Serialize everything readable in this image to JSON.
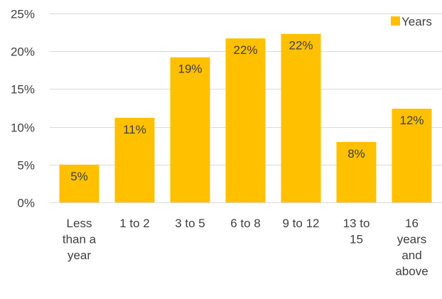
{
  "chart_data": {
    "type": "bar",
    "categories": [
      [
        "Less",
        "than a",
        "year"
      ],
      [
        "1 to 2"
      ],
      [
        "3 to 5"
      ],
      [
        "6 to 8"
      ],
      [
        "9 to 12"
      ],
      [
        "13 to",
        "15"
      ],
      [
        "16",
        "years",
        "and",
        "above"
      ]
    ],
    "series": [
      {
        "name": "Years",
        "values": [
          5,
          11,
          19,
          22,
          22,
          8,
          12
        ],
        "plotted_values": [
          5.0,
          11.2,
          19.2,
          21.7,
          22.3,
          8.0,
          12.4
        ],
        "color": "#FFC000"
      }
    ],
    "data_labels": [
      "5%",
      "11%",
      "19%",
      "22%",
      "22%",
      "8%",
      "12%"
    ],
    "y_ticks": [
      "0%",
      "5%",
      "10%",
      "15%",
      "20%",
      "25%"
    ],
    "ylim": [
      0,
      25
    ],
    "grid": true,
    "legend_position": "top-right",
    "gridline_color": "#D9D9D9",
    "text_color": "#404040"
  }
}
